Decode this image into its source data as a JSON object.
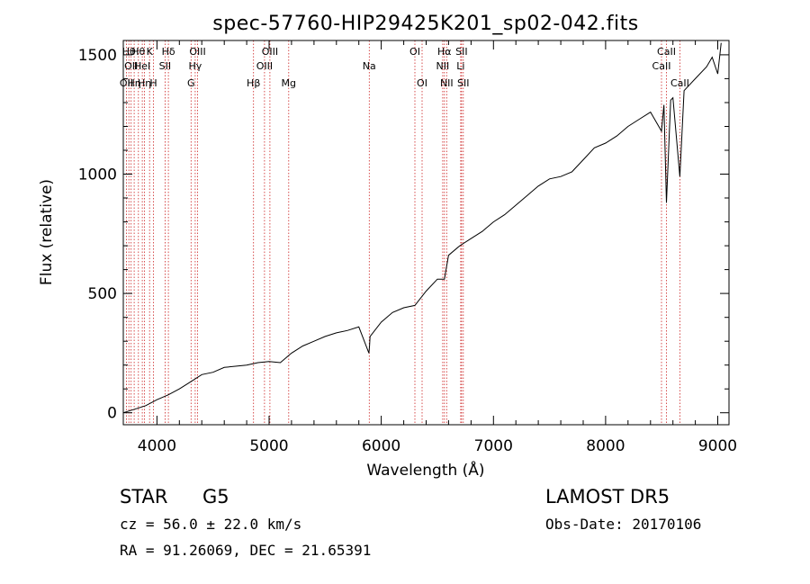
{
  "chart_data": {
    "type": "line",
    "title": "spec-57760-HIP29425K201_sp02-042.fits",
    "xlabel": "Wavelength (Å)",
    "ylabel": "Flux (relative)",
    "xlim": [
      3700,
      9100
    ],
    "ylim": [
      -50,
      1560
    ],
    "x_ticks": [
      4000,
      5000,
      6000,
      7000,
      8000,
      9000
    ],
    "y_ticks": [
      0,
      500,
      1000,
      1500
    ],
    "series": [
      {
        "x": [
          3700,
          3800,
          3900,
          4000,
          4100,
          4200,
          4300,
          4400,
          4500,
          4600,
          4700,
          4800,
          4900,
          5000,
          5100,
          5200,
          5300,
          5400,
          5500,
          5600,
          5700,
          5800,
          5890,
          5895,
          5900,
          6000,
          6100,
          6200,
          6300,
          6400,
          6500,
          6563,
          6600,
          6700,
          6800,
          6900,
          7000,
          7100,
          7200,
          7300,
          7400,
          7500,
          7600,
          7700,
          7800,
          7900,
          8000,
          8100,
          8200,
          8300,
          8400,
          8498,
          8520,
          8542,
          8580,
          8600,
          8662,
          8700,
          8800,
          8900,
          8950,
          9000,
          9030
        ],
        "y": [
          0,
          15,
          30,
          55,
          75,
          100,
          130,
          160,
          170,
          190,
          195,
          200,
          210,
          215,
          210,
          250,
          280,
          300,
          320,
          335,
          345,
          360,
          250,
          280,
          320,
          380,
          420,
          440,
          450,
          510,
          560,
          560,
          660,
          700,
          730,
          760,
          800,
          830,
          870,
          910,
          950,
          980,
          990,
          1010,
          1060,
          1110,
          1130,
          1160,
          1200,
          1230,
          1260,
          1180,
          1290,
          880,
          1310,
          1320,
          990,
          1350,
          1400,
          1450,
          1490,
          1420,
          1550
        ]
      }
    ],
    "line_color": "#000000",
    "marker_color": "#cc2222",
    "grid": false,
    "lines": [
      {
        "wavelength": 3727,
        "label": "OII",
        "row": 2
      },
      {
        "wavelength": 3750,
        "label": "Hθ",
        "row": 0
      },
      {
        "wavelength": 3770,
        "label": "OII",
        "row": 1
      },
      {
        "wavelength": 3797,
        "label": "Hη",
        "row": 2
      },
      {
        "wavelength": 3835,
        "label": "Hθ",
        "row": 0
      },
      {
        "wavelength": 3869,
        "label": "HeI",
        "row": 1
      },
      {
        "wavelength": 3889,
        "label": "Hη",
        "row": 2
      },
      {
        "wavelength": 3934,
        "label": "K",
        "row": 0
      },
      {
        "wavelength": 3969,
        "label": "H",
        "row": 2
      },
      {
        "wavelength": 4072,
        "label": "SII",
        "row": 1
      },
      {
        "wavelength": 4102,
        "label": "Hδ",
        "row": 0
      },
      {
        "wavelength": 4304,
        "label": "G",
        "row": 2
      },
      {
        "wavelength": 4341,
        "label": "Hγ",
        "row": 1
      },
      {
        "wavelength": 4363,
        "label": "OIII",
        "row": 0
      },
      {
        "wavelength": 4861,
        "label": "Hβ",
        "row": 2
      },
      {
        "wavelength": 4959,
        "label": "OIII",
        "row": 1
      },
      {
        "wavelength": 5007,
        "label": "OIII",
        "row": 0
      },
      {
        "wavelength": 5175,
        "label": "Mg",
        "row": 2
      },
      {
        "wavelength": 5893,
        "label": "Na",
        "row": 1
      },
      {
        "wavelength": 6300,
        "label": "OI",
        "row": 0
      },
      {
        "wavelength": 6364,
        "label": "OI",
        "row": 2
      },
      {
        "wavelength": 6548,
        "label": "NII",
        "row": 1
      },
      {
        "wavelength": 6563,
        "label": "Hα",
        "row": 0
      },
      {
        "wavelength": 6583,
        "label": "NII",
        "row": 2
      },
      {
        "wavelength": 6708,
        "label": "Li",
        "row": 1
      },
      {
        "wavelength": 6716,
        "label": "SII",
        "row": 0
      },
      {
        "wavelength": 6731,
        "label": "SII",
        "row": 2
      },
      {
        "wavelength": 8498,
        "label": "CaII",
        "row": 1
      },
      {
        "wavelength": 8542,
        "label": "CaII",
        "row": 0
      },
      {
        "wavelength": 8662,
        "label": "CaII",
        "row": 2
      }
    ]
  },
  "footer": {
    "class_label": "STAR",
    "subclass": "G5",
    "survey": "LAMOST DR5",
    "redshift": "cz = 56.0 ± 22.0 km/s",
    "obs_date": "Obs-Date: 20170106",
    "coords": "RA =  91.26069, DEC =  21.65391"
  }
}
